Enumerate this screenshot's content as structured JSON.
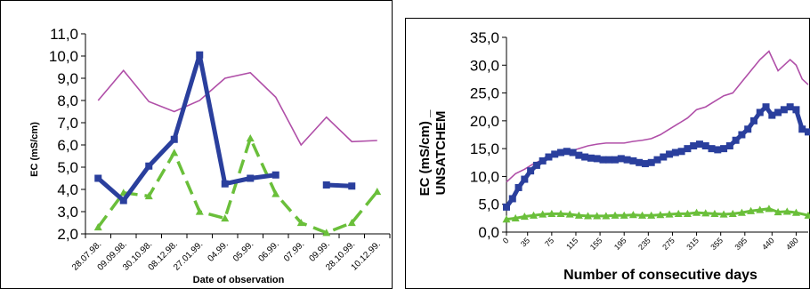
{
  "chart_data": [
    {
      "type": "line",
      "xlabel": "Date of observation",
      "ylabel": "EC (mS/cm)",
      "categories": [
        "28.07.98.",
        "09.09.98.",
        "30.10.98.",
        "08.12.98.",
        "27.01.99.",
        "04.99.",
        "05.99.",
        "06.99.",
        "07.99.",
        "09.99.",
        "28.10.99.",
        "10.12.99."
      ],
      "ylim": [
        2.0,
        11.0
      ],
      "yticks": [
        "2,0",
        "3,0",
        "4,0",
        "5,0",
        "6,0",
        "7,0",
        "8,0",
        "9,0",
        "10,0",
        "11,0"
      ],
      "series": [
        {
          "color": "#2a3f9d",
          "style": "thick-square",
          "values": [
            4.5,
            3.5,
            5.05,
            6.25,
            10.05,
            4.25,
            4.5,
            4.65,
            null,
            4.2,
            4.15,
            null
          ]
        },
        {
          "color": "#6abf3a",
          "style": "dashed-triangle",
          "values": [
            2.3,
            3.85,
            3.7,
            5.65,
            3.0,
            2.7,
            6.3,
            3.8,
            2.5,
            2.05,
            2.5,
            3.9
          ]
        },
        {
          "color": "#b04fa8",
          "style": "thin",
          "values": [
            8.0,
            9.35,
            7.95,
            7.5,
            8.0,
            9.0,
            9.25,
            8.15,
            6.0,
            7.25,
            6.15,
            6.2
          ]
        }
      ],
      "grid": false
    },
    {
      "type": "line",
      "xlabel": "Number of consecutive days",
      "ylabel": "EC (mS/cm) _ UNSATCHEM",
      "ylabel_lines": [
        "EC (mS/cm) _",
        "UNSATCHEM"
      ],
      "xlim": [
        0,
        500
      ],
      "xticks": [
        "0",
        "35",
        "75",
        "115",
        "155",
        "195",
        "235",
        "275",
        "315",
        "355",
        "395",
        "440",
        "480"
      ],
      "ylim": [
        0.0,
        35.0
      ],
      "yticks": [
        "0,0",
        "5,0",
        "10,0",
        "15,0",
        "20,0",
        "25,0",
        "30,0",
        "35,0"
      ],
      "series": [
        {
          "color": "#b04fa8",
          "style": "thin",
          "x": [
            0,
            15,
            30,
            45,
            60,
            75,
            90,
            105,
            120,
            135,
            150,
            165,
            180,
            195,
            210,
            225,
            240,
            255,
            270,
            285,
            300,
            315,
            330,
            345,
            360,
            375,
            390,
            405,
            420,
            435,
            450,
            460,
            470,
            480,
            490,
            500
          ],
          "values": [
            9.0,
            10.5,
            11.3,
            12.3,
            13.0,
            13.5,
            14.0,
            14.5,
            15.0,
            15.5,
            15.8,
            16.0,
            16.0,
            16.0,
            16.3,
            16.5,
            16.8,
            17.5,
            18.5,
            19.5,
            20.5,
            22.0,
            22.5,
            23.5,
            24.5,
            25.0,
            27.0,
            29.0,
            31.0,
            32.5,
            29.0,
            30.0,
            31.0,
            30.0,
            27.5,
            26.5
          ]
        },
        {
          "color": "#2a3f9d",
          "style": "thick-square",
          "x": [
            0,
            10,
            20,
            30,
            40,
            50,
            60,
            70,
            80,
            90,
            100,
            110,
            120,
            130,
            140,
            150,
            160,
            170,
            180,
            190,
            200,
            210,
            220,
            230,
            240,
            250,
            260,
            270,
            280,
            290,
            300,
            310,
            320,
            330,
            340,
            350,
            360,
            370,
            380,
            390,
            400,
            410,
            420,
            430,
            440,
            450,
            460,
            470,
            480,
            490,
            500
          ],
          "values": [
            4.5,
            6.0,
            8.0,
            9.5,
            11.0,
            12.0,
            12.8,
            13.5,
            14.0,
            14.3,
            14.5,
            14.3,
            13.8,
            13.5,
            13.3,
            13.2,
            13.0,
            13.0,
            13.0,
            13.2,
            13.0,
            12.8,
            12.5,
            12.3,
            12.5,
            13.0,
            13.5,
            14.0,
            14.3,
            14.5,
            15.0,
            15.5,
            15.8,
            15.5,
            15.0,
            14.8,
            15.0,
            15.5,
            16.5,
            17.5,
            18.5,
            20.0,
            21.5,
            22.5,
            21.0,
            21.5,
            22.0,
            22.5,
            22.0,
            18.5,
            18.0
          ]
        },
        {
          "color": "#6abf3a",
          "style": "thick-triangle",
          "x": [
            0,
            15,
            30,
            45,
            60,
            75,
            90,
            105,
            120,
            135,
            150,
            165,
            180,
            195,
            210,
            225,
            240,
            255,
            270,
            285,
            300,
            315,
            330,
            345,
            360,
            375,
            390,
            405,
            420,
            435,
            450,
            465,
            480,
            500
          ],
          "values": [
            2.3,
            2.5,
            2.8,
            3.0,
            3.2,
            3.3,
            3.3,
            3.2,
            3.0,
            2.9,
            2.9,
            2.9,
            3.0,
            3.0,
            3.1,
            3.0,
            3.0,
            3.1,
            3.2,
            3.3,
            3.3,
            3.5,
            3.4,
            3.3,
            3.2,
            3.3,
            3.5,
            3.8,
            4.0,
            4.2,
            3.6,
            3.7,
            3.5,
            3.0
          ]
        }
      ],
      "grid": false
    }
  ]
}
